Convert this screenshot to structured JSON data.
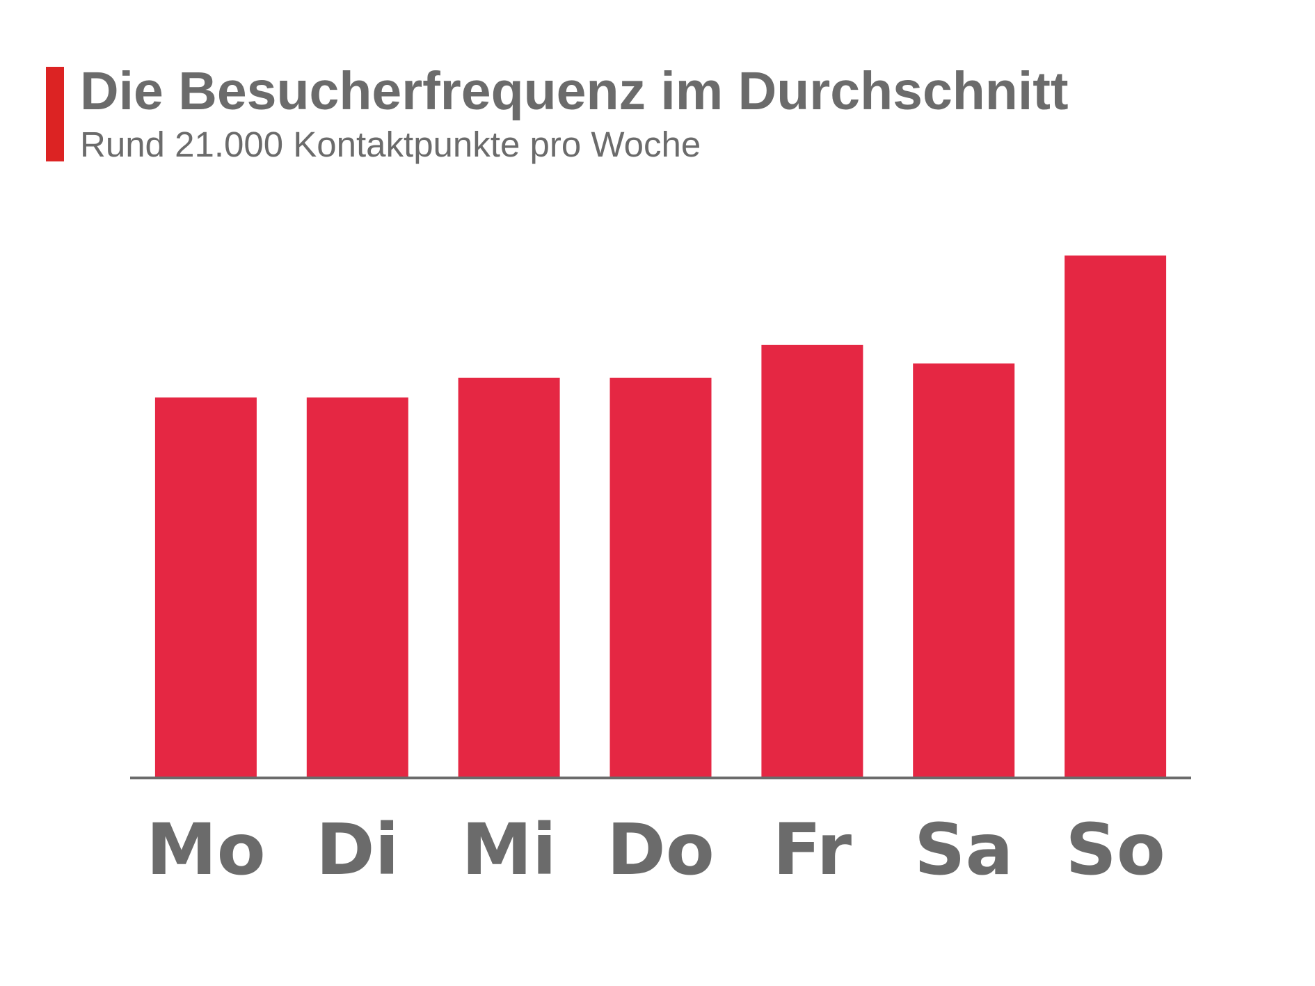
{
  "header": {
    "title": "Die Besucherfrequenz im Durchschnitt",
    "subtitle": "Rund 21.000 Kontaktpunkte pro Woche"
  },
  "colors": {
    "accent": "#dc2323",
    "bar": "#e52743",
    "text": "#6b6b6b",
    "axis": "#6b6b6b"
  },
  "chart_data": {
    "type": "bar",
    "title": "",
    "xlabel": "",
    "ylabel": "",
    "categories": [
      "Mo",
      "Di",
      "Mi",
      "Do",
      "Fr",
      "Sa",
      "So"
    ],
    "values": [
      2.67,
      2.67,
      2.81,
      2.81,
      3.04,
      2.91,
      3.67
    ],
    "ylim": [
      0,
      4
    ],
    "grid": false,
    "legend": "none",
    "y_axis_visible": false
  }
}
